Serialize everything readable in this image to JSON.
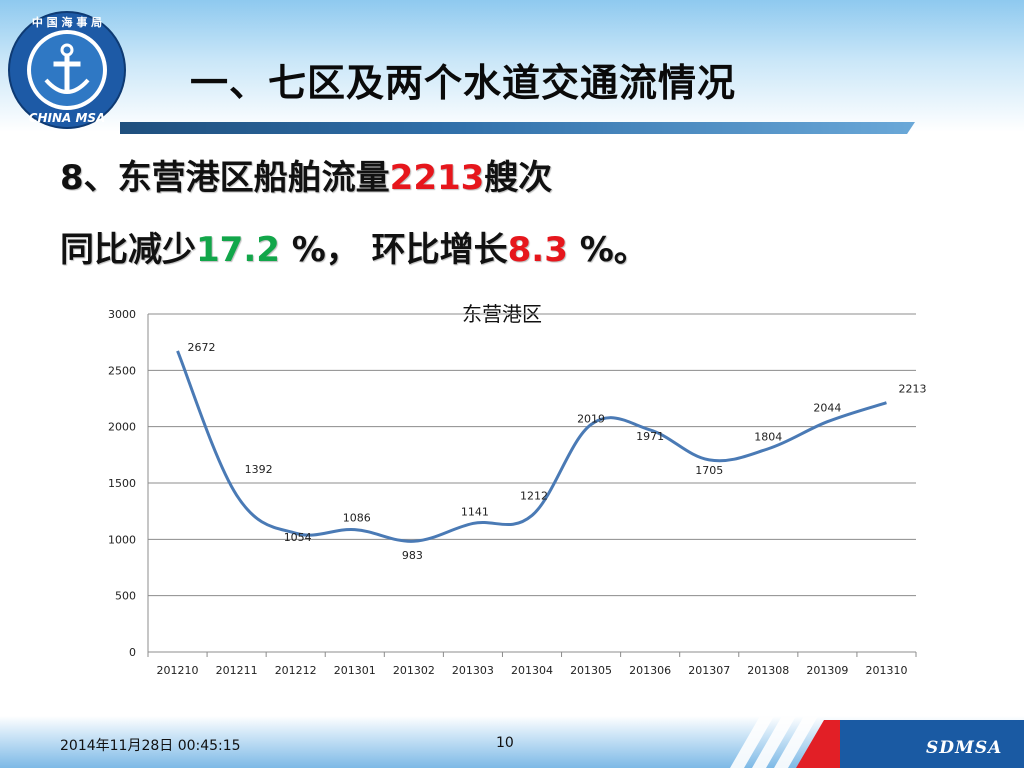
{
  "header": {
    "title": "一、七区及两个水道交通流情况",
    "logo": {
      "top_text": "中 国 海 事 局",
      "bottom_text": "CHINA MSA",
      "icon": "anchor-icon"
    }
  },
  "summary": {
    "line1_prefix": "8、东营港区船舶流量",
    "line1_value": "2213",
    "line1_suffix": "艘次",
    "line2_prefix": "同比减少",
    "line2_yoy": "17.2",
    "line2_mid": " %， 环比增长",
    "line2_mom": "8.3",
    "line2_suffix": " %。",
    "colors": {
      "highlight_red": "#e6161c",
      "highlight_green": "#12a64a"
    }
  },
  "chart_data": {
    "type": "line",
    "title": "东营港区",
    "categories": [
      "201210",
      "201211",
      "201212",
      "201301",
      "201302",
      "201303",
      "201304",
      "201305",
      "201306",
      "201307",
      "201308",
      "201309",
      "201310"
    ],
    "series": [
      {
        "values": [
          2672,
          1392,
          1054,
          1086,
          983,
          1141,
          1212,
          2019,
          1971,
          1705,
          1804,
          2044,
          2213
        ],
        "color": "#4a7ab5"
      }
    ],
    "ylim": [
      0,
      3000
    ],
    "yticks": [
      0,
      500,
      1000,
      1500,
      2000,
      2500,
      3000
    ],
    "grid": true,
    "smooth": true
  },
  "footer": {
    "datetime": "2014年11月28日  00:45:15",
    "page": "10",
    "brand": "SDMSA"
  }
}
